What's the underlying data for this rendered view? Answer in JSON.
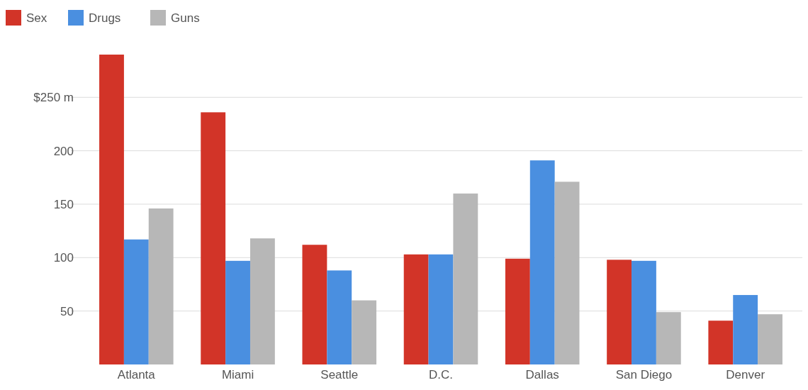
{
  "chart_data": {
    "type": "bar",
    "categories": [
      "Atlanta",
      "Miami",
      "Seattle",
      "D.C.",
      "Dallas",
      "San Diego",
      "Denver"
    ],
    "series": [
      {
        "name": "Sex",
        "color": "#d23428",
        "values": [
          290,
          236,
          112,
          103,
          99,
          98,
          41
        ]
      },
      {
        "name": "Drugs",
        "color": "#4a8fe0",
        "values": [
          117,
          97,
          88,
          103,
          191,
          97,
          65
        ]
      },
      {
        "name": "Guns",
        "color": "#b7b7b7",
        "values": [
          146,
          118,
          60,
          160,
          171,
          49,
          47
        ]
      }
    ],
    "ylim": [
      0,
      290
    ],
    "yticks": [
      50,
      100,
      150,
      200,
      {
        "value": 250,
        "label": "$250 m"
      }
    ],
    "grid": "y",
    "legend": "top left"
  }
}
